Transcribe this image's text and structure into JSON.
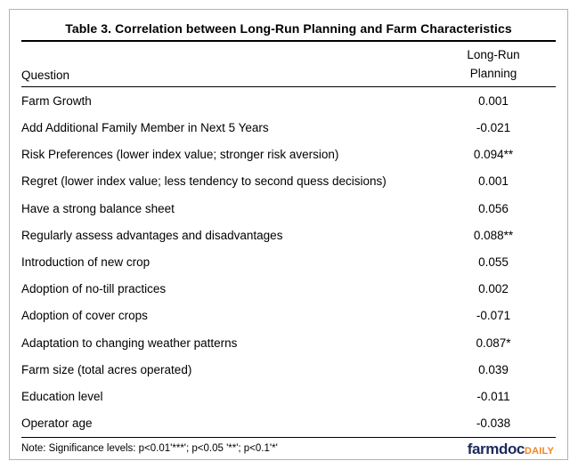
{
  "table": {
    "title": "Table 3. Correlation between Long-Run Planning and Farm Characteristics",
    "header": {
      "question": "Question",
      "value_line1": "Long-Run",
      "value_line2": "Planning"
    },
    "rows": [
      {
        "question": "Farm Growth",
        "value": "0.001"
      },
      {
        "question": "Add Additional Family Member in Next 5 Years",
        "value": "-0.021"
      },
      {
        "question": "Risk Preferences (lower index value; stronger risk aversion)",
        "value": "0.094**"
      },
      {
        "question": "Regret (lower index value; less tendency to second quess decisions)",
        "value": "0.001"
      },
      {
        "question": "Have a strong balance sheet",
        "value": "0.056"
      },
      {
        "question": "Regularly assess advantages and disadvantages",
        "value": "0.088**"
      },
      {
        "question": "Introduction of new crop",
        "value": "0.055"
      },
      {
        "question": "Adoption of no-till practices",
        "value": "0.002"
      },
      {
        "question": "Adoption of cover crops",
        "value": "-0.071"
      },
      {
        "question": "Adaptation to changing weather patterns",
        "value": "0.087*"
      },
      {
        "question": "Farm size (total acres operated)",
        "value": "0.039"
      },
      {
        "question": "Education level",
        "value": "-0.011"
      },
      {
        "question": "Operator age",
        "value": "-0.038"
      }
    ],
    "note": "Note: Significance levels: p<0.01'***'; p<0.05 '**'; p<0.1'*'"
  },
  "logo": {
    "part1": "farmdoc",
    "part2": "DAILY"
  },
  "colors": {
    "logo_navy": "#1c2b5c",
    "logo_orange": "#f58220",
    "frame_border": "#b3b3b3",
    "rule_black": "#000000"
  }
}
